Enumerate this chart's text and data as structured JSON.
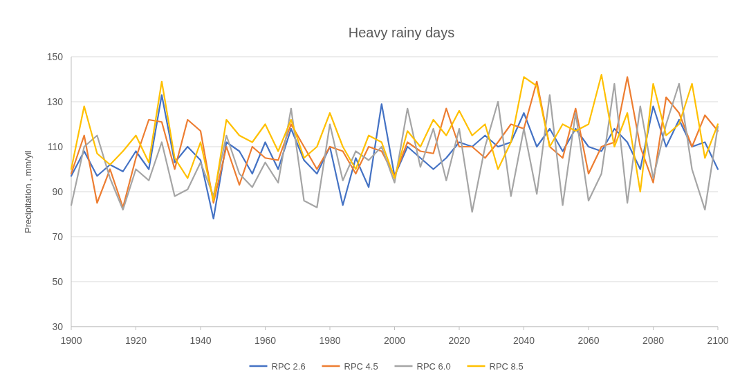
{
  "chart_data": {
    "type": "line",
    "title": "Heavy rainy days",
    "ylabel": "Precipitation , mm/yil",
    "x": [
      1900,
      1904,
      1908,
      1912,
      1916,
      1920,
      1924,
      1928,
      1932,
      1936,
      1940,
      1944,
      1948,
      1952,
      1956,
      1960,
      1964,
      1968,
      1972,
      1976,
      1980,
      1984,
      1988,
      1992,
      1996,
      2000,
      2004,
      2008,
      2012,
      2016,
      2020,
      2024,
      2028,
      2032,
      2036,
      2040,
      2044,
      2048,
      2052,
      2056,
      2060,
      2064,
      2068,
      2072,
      2076,
      2080,
      2084,
      2088,
      2092,
      2096,
      2100
    ],
    "series": [
      {
        "name": "RPC 2.6",
        "color": "#4472c4",
        "values": [
          97,
          108,
          97,
          102,
          99,
          108,
          100,
          133,
          103,
          110,
          104,
          78,
          112,
          108,
          98,
          112,
          100,
          118,
          104,
          98,
          110,
          84,
          105,
          92,
          129,
          97,
          110,
          105,
          100,
          105,
          112,
          110,
          115,
          110,
          112,
          125,
          110,
          118,
          108,
          118,
          110,
          108,
          118,
          112,
          100,
          128,
          110,
          122,
          110,
          112,
          100
        ]
      },
      {
        "name": "RPC 4.5",
        "color": "#ed7d31",
        "values": [
          98,
          115,
          85,
          100,
          83,
          105,
          122,
          121,
          100,
          122,
          117,
          85,
          110,
          93,
          110,
          105,
          104,
          120,
          110,
          100,
          110,
          108,
          98,
          110,
          108,
          97,
          112,
          108,
          107,
          127,
          110,
          110,
          105,
          112,
          120,
          118,
          139,
          110,
          105,
          127,
          98,
          110,
          112,
          141,
          110,
          94,
          132,
          125,
          110,
          124,
          117
        ]
      },
      {
        "name": "RPC 6.0",
        "color": "#a5a5a5",
        "values": [
          84,
          110,
          115,
          96,
          82,
          100,
          95,
          112,
          88,
          91,
          103,
          88,
          115,
          98,
          92,
          103,
          94,
          127,
          86,
          83,
          120,
          95,
          108,
          104,
          110,
          94,
          127,
          101,
          118,
          95,
          118,
          81,
          110,
          130,
          88,
          118,
          89,
          133,
          84,
          125,
          86,
          98,
          138,
          85,
          128,
          96,
          120,
          138,
          100,
          82,
          119
        ]
      },
      {
        "name": "RPC 8.5",
        "color": "#ffc000",
        "values": [
          100,
          128,
          107,
          102,
          108,
          115,
          103,
          139,
          105,
          96,
          112,
          86,
          122,
          115,
          112,
          120,
          108,
          122,
          105,
          110,
          125,
          110,
          100,
          115,
          112,
          96,
          117,
          110,
          122,
          115,
          126,
          115,
          120,
          100,
          112,
          141,
          137,
          110,
          120,
          117,
          120,
          142,
          110,
          125,
          90,
          138,
          115,
          120,
          138,
          105,
          120
        ]
      }
    ],
    "xlim": [
      1900,
      2100
    ],
    "xticks": [
      1900,
      1920,
      1940,
      1960,
      1980,
      2000,
      2020,
      2040,
      2060,
      2080,
      2100
    ],
    "ylim": [
      30,
      150
    ],
    "yticks": [
      30,
      50,
      70,
      90,
      110,
      130,
      150
    ],
    "grid": "y",
    "legend": "bottom",
    "marker": "none",
    "line_style": "solid"
  }
}
